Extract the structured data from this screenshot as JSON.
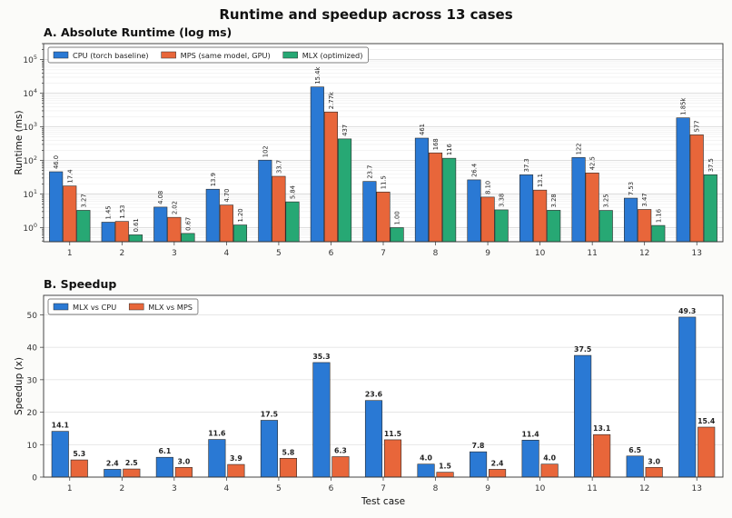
{
  "figure": {
    "title": "Runtime and speedup across 13 cases"
  },
  "colors": {
    "cpu": "#2a79d4",
    "mps": "#e8663a",
    "mlx": "#27a874"
  },
  "chart_data": [
    {
      "type": "bar",
      "title": "A.  Absolute Runtime (log ms)",
      "xlabel": "",
      "ylabel": "Runtime (ms)",
      "yscale": "log",
      "ylim": [
        0.38,
        300000
      ],
      "yticks": [
        "10^0",
        "10^1",
        "10^2",
        "10^3",
        "10^4",
        "10^5"
      ],
      "grid": true,
      "legend": "top-left",
      "categories": [
        "1",
        "2",
        "3",
        "4",
        "5",
        "6",
        "7",
        "8",
        "9",
        "10",
        "11",
        "12",
        "13"
      ],
      "series": [
        {
          "name": "CPU (torch baseline)",
          "color_key": "cpu",
          "values": [
            46.0,
            1.45,
            4.08,
            13.9,
            102,
            15400,
            23.7,
            461,
            26.4,
            37.3,
            122,
            7.53,
            1850
          ],
          "labels": [
            "46.0",
            "1.45",
            "4.08",
            "13.9",
            "102",
            "15.4k",
            "23.7",
            "461",
            "26.4",
            "37.3",
            "122",
            "7.53",
            "1.85k"
          ]
        },
        {
          "name": "MPS (same model, GPU)",
          "color_key": "mps",
          "values": [
            17.4,
            1.53,
            2.02,
            4.7,
            33.7,
            2770,
            11.5,
            168,
            8.1,
            13.1,
            42.5,
            3.47,
            577
          ],
          "labels": [
            "17.4",
            "1.53",
            "2.02",
            "4.70",
            "33.7",
            "2.77k",
            "11.5",
            "168",
            "8.10",
            "13.1",
            "42.5",
            "3.47",
            "577"
          ]
        },
        {
          "name": "MLX (optimized)",
          "color_key": "mlx",
          "values": [
            3.27,
            0.61,
            0.67,
            1.2,
            5.84,
            437,
            1.0,
            116,
            3.38,
            3.28,
            3.25,
            1.16,
            37.5
          ],
          "labels": [
            "3.27",
            "0.61",
            "0.67",
            "1.20",
            "5.84",
            "437",
            "1.00",
            "116",
            "3.38",
            "3.28",
            "3.25",
            "1.16",
            "37.5"
          ]
        }
      ]
    },
    {
      "type": "bar",
      "title": "B.  Speedup",
      "xlabel": "Test case",
      "ylabel": "Speedup (x)",
      "yscale": "linear",
      "ylim": [
        0,
        56
      ],
      "yticks": [
        0,
        10,
        20,
        30,
        40,
        50
      ],
      "grid": true,
      "legend": "top-left",
      "categories": [
        "1",
        "2",
        "3",
        "4",
        "5",
        "6",
        "7",
        "8",
        "9",
        "10",
        "11",
        "12",
        "13"
      ],
      "series": [
        {
          "name": "MLX vs CPU",
          "color_key": "cpu",
          "values": [
            14.1,
            2.4,
            6.1,
            11.6,
            17.5,
            35.3,
            23.6,
            4.0,
            7.8,
            11.4,
            37.5,
            6.5,
            49.3
          ],
          "labels": [
            "14.1",
            "2.4",
            "6.1",
            "11.6",
            "17.5",
            "35.3",
            "23.6",
            "4.0",
            "7.8",
            "11.4",
            "37.5",
            "6.5",
            "49.3"
          ]
        },
        {
          "name": "MLX vs MPS",
          "color_key": "mps",
          "values": [
            5.3,
            2.5,
            3.0,
            3.9,
            5.8,
            6.3,
            11.5,
            1.5,
            2.4,
            4.0,
            13.1,
            3.0,
            15.4
          ],
          "labels": [
            "5.3",
            "2.5",
            "3.0",
            "3.9",
            "5.8",
            "6.3",
            "11.5",
            "1.5",
            "2.4",
            "4.0",
            "13.1",
            "3.0",
            "15.4"
          ]
        }
      ]
    }
  ]
}
